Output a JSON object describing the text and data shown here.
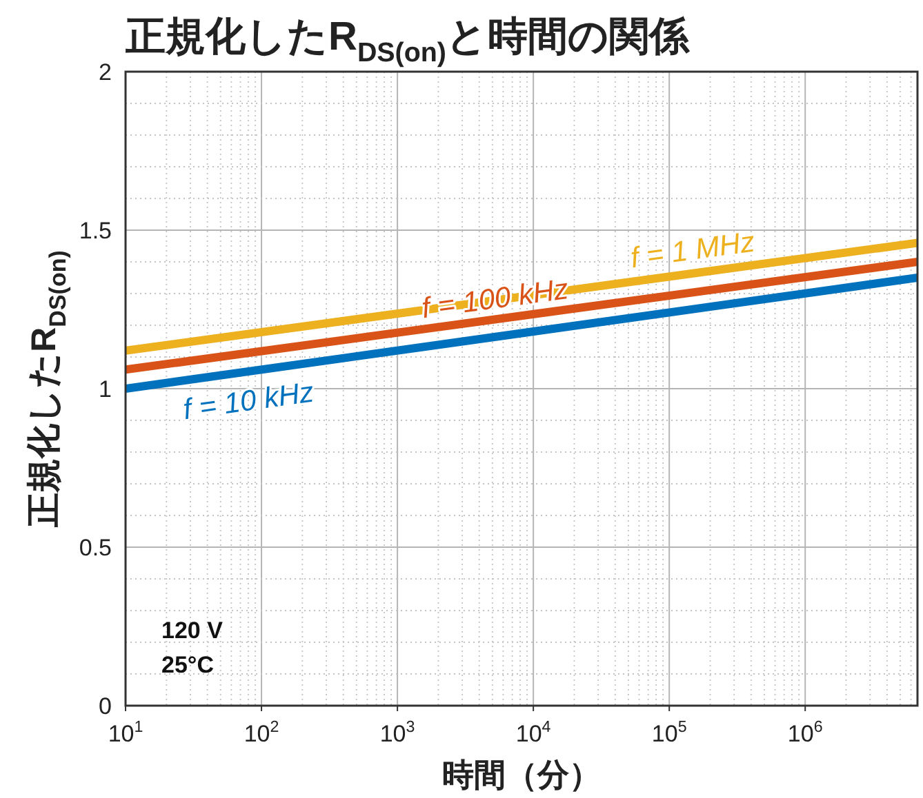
{
  "chart_data": {
    "type": "line",
    "title": "正規化したR$_{DS(on)}$と時間の関係",
    "xlabel": "時間（分）",
    "ylabel": "正規化したR$_{DS(on)}$",
    "log": "x",
    "xlim": [
      10,
      6700000
    ],
    "xticks": [
      {
        "value": 10,
        "label": "10$^{1}$"
      },
      {
        "value": 100,
        "label": "10$^{2}$"
      },
      {
        "value": 1000,
        "label": "10$^{3}$"
      },
      {
        "value": 10000,
        "label": "10$^{4}$"
      },
      {
        "value": 100000,
        "label": "10$^{5}$"
      },
      {
        "value": 1000000,
        "label": "10$^{6}$"
      }
    ],
    "ylim": [
      0,
      2
    ],
    "yticks": [
      0,
      0.5,
      1,
      1.5,
      2
    ],
    "grid": true,
    "line_style": "solid",
    "marker": "none",
    "x": [
      10,
      6700000
    ],
    "series": [
      {
        "name": "f = 10 kHz",
        "color": "#0072bd",
        "values": [
          1.0,
          1.35
        ]
      },
      {
        "name": "f = 100 kHz",
        "color": "#d95319",
        "values": [
          1.06,
          1.4
        ]
      },
      {
        "name": "f = 1 MHz",
        "color": "#edb120",
        "values": [
          1.12,
          1.46
        ]
      }
    ],
    "annotations": [
      "120 V",
      "25°C"
    ]
  }
}
